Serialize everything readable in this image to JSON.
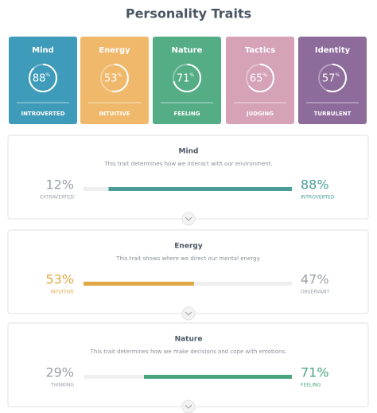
{
  "header": {
    "title": "Personality Traits"
  },
  "cards": [
    {
      "title": "Mind",
      "value": 88,
      "unit": "%",
      "label": "INTROVERTED",
      "color": "#3f9bba"
    },
    {
      "title": "Energy",
      "value": 53,
      "unit": "%",
      "label": "INTUITIVE",
      "color": "#f0b86b"
    },
    {
      "title": "Nature",
      "value": 71,
      "unit": "%",
      "label": "FEELING",
      "color": "#55ad86"
    },
    {
      "title": "Tactics",
      "value": 65,
      "unit": "%",
      "label": "JUDGING",
      "color": "#d5a2b8"
    },
    {
      "title": "Identity",
      "value": 57,
      "unit": "%",
      "label": "TURBULENT",
      "color": "#8d6b9b"
    }
  ],
  "sections": [
    {
      "title": "Mind",
      "description": "This trait determines how we interact with our environment.",
      "dominant": "right",
      "color": "#4a9e96",
      "left": {
        "value": 12,
        "label": "12%",
        "text": "EXTRAVERTED"
      },
      "right": {
        "value": 88,
        "label": "88%",
        "text": "INTROVERTED"
      }
    },
    {
      "title": "Energy",
      "description": "This trait shows where we direct our mental energy.",
      "dominant": "left",
      "color": "#e0a845",
      "left": {
        "value": 53,
        "label": "53%",
        "text": "INTUITIVE"
      },
      "right": {
        "value": 47,
        "label": "47%",
        "text": "OBSERVANT"
      }
    },
    {
      "title": "Nature",
      "description": "This trait determines how we make decisions and cope with emotions.",
      "dominant": "right",
      "color": "#4aa57e",
      "left": {
        "value": 29,
        "label": "29%",
        "text": "THINKING"
      },
      "right": {
        "value": 71,
        "label": "71%",
        "text": "FEELING"
      }
    }
  ]
}
